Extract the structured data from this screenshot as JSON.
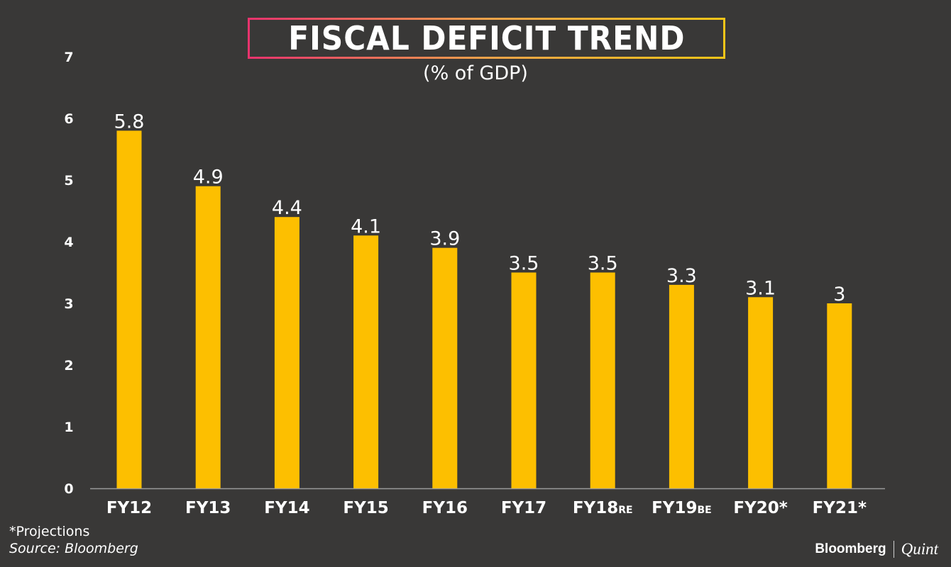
{
  "header": {
    "title": "FISCAL DEFICIT TREND",
    "subtitle": "(% of GDP)"
  },
  "footer": {
    "footnote": "*Projections",
    "source": "Source: Bloomberg",
    "brand_primary": "Bloomberg",
    "brand_secondary": "Quint"
  },
  "colors": {
    "background": "#393837",
    "bar": "#FDBF00",
    "text": "#FFFFFF",
    "axis": "#9a9a9a"
  },
  "chart_data": {
    "type": "bar",
    "title": "FISCAL DEFICIT TREND",
    "subtitle": "(% of GDP)",
    "categories": [
      {
        "main": "FY12",
        "suffix": ""
      },
      {
        "main": "FY13",
        "suffix": ""
      },
      {
        "main": "FY14",
        "suffix": ""
      },
      {
        "main": "FY15",
        "suffix": ""
      },
      {
        "main": "FY16",
        "suffix": ""
      },
      {
        "main": "FY17",
        "suffix": ""
      },
      {
        "main": "FY18",
        "suffix": "RE"
      },
      {
        "main": "FY19",
        "suffix": "BE"
      },
      {
        "main": "FY20*",
        "suffix": ""
      },
      {
        "main": "FY21*",
        "suffix": ""
      }
    ],
    "values": [
      5.8,
      4.9,
      4.4,
      4.1,
      3.9,
      3.5,
      3.5,
      3.3,
      3.1,
      3
    ],
    "data_labels": [
      "5.8",
      "4.9",
      "4.4",
      "4.1",
      "3.9",
      "3.5",
      "3.5",
      "3.3",
      "3.1",
      "3"
    ],
    "yticks": [
      0,
      1,
      2,
      3,
      4,
      5,
      6,
      7
    ],
    "ylim": [
      0,
      7
    ],
    "grid": false,
    "legend": "none",
    "xlabel": "",
    "ylabel": ""
  }
}
